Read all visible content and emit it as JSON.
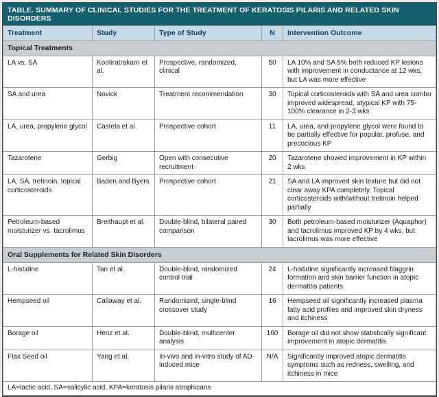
{
  "title": "TABLE. SUMMARY OF CLINICAL STUDIES FOR THE TREATMENT OF KERATOSIS PILARIS AND RELATED SKIN DISORDERS",
  "columns": [
    "Treatment",
    "Study",
    "Type of Study",
    "N",
    "Intervention Outcome"
  ],
  "sections": [
    {
      "header": "Topical Treatments",
      "rows": [
        {
          "treatment": "LA vs. SA",
          "study": "Kootiratrakarn et al.",
          "type": "Prospective, randomized, clinical",
          "n": "50",
          "outcome": "LA 10% and SA 5% both reduced KP lesions with improvement in conductance at 12 wks, but LA was more effective"
        },
        {
          "treatment": "SA and urea",
          "study": "Novick",
          "type": "Treatment recommendation",
          "n": "30",
          "outcome": "Topical corticosteroids with SA and urea combo improved widespread, atypical KP with 75-100% clearance in 2-3 wks"
        },
        {
          "treatment": "LA, urea, propylene glycol",
          "study": "Castela et al.",
          "type": "Prospective cohort",
          "n": "11",
          "outcome": "LA, urea, and propylene glycol were found to be partially effective for popular, profuse, and precocious KP"
        },
        {
          "treatment": "Tazarotene",
          "study": "Gerbig",
          "type": "Open with consecutive recruitment",
          "n": "20",
          "outcome": "Tazarotene showed improvement in KP within 2 wks"
        },
        {
          "treatment": "LA, SA, tretinoin, topical corticosteroids",
          "study": "Baden and Byers",
          "type": "Prospective cohort",
          "n": "21",
          "outcome": "SA and LA improved skin texture but did not clear away KPA completely. Topical corticosteroids with/without tretinoin helped partially"
        },
        {
          "treatment": "Petroleum-based moisturizer vs. tacrolimus",
          "study": "Breithaupt et al.",
          "type": "Double-blind, bilateral paired comparison",
          "n": "30",
          "outcome": "Both petroleum-based moisturizer (Aquaphor) and tacrolimus improved KP by 4 wks, but tacrolimus was more effective"
        }
      ]
    },
    {
      "header": "Oral Supplements for Related Skin Disorders",
      "rows": [
        {
          "treatment": "L-histidine",
          "study": "Tan et al.",
          "type": "Double-blind, randomized control trial",
          "n": "24",
          "outcome": "L-histidine significantly increased filaggrin formation and skin barrier function in atopic dermatitis patients"
        },
        {
          "treatment": "Hempseed oil",
          "study": "Callaway et al.",
          "type": "Randomized, single-blind crossover study",
          "n": "16",
          "outcome": "Hempseed oil significantly increased plasma fatty acid profiles and improved skin dryness and itchiness"
        },
        {
          "treatment": "Borage oil",
          "study": "Henz et al.",
          "type": "Double-blind, multicenter analysis",
          "n": "160",
          "outcome": "Borage oil did not show statistically significant improvement in atopic dermatitis"
        },
        {
          "treatment": "Flax Seed oil",
          "study": "Yang et al.",
          "type": "In-vivo and in-vitro study of AD-induced mice",
          "n": "N/A",
          "outcome": "Significantly improved atopic dermatitis symptoms such as redness, swelling, and itchiness in mice"
        }
      ]
    }
  ],
  "footnote": "LA=lactic acid, SA=salicylic acid, KPA=keratosis pilaris atrophicans",
  "colors": {
    "title_bg": "#15606f",
    "header_bg": "#c7dae8",
    "header_text": "#163f66",
    "section_bg": "#c9ced3",
    "grid_line": "#9b9b9b",
    "outer_border": "#4c4c4c"
  }
}
